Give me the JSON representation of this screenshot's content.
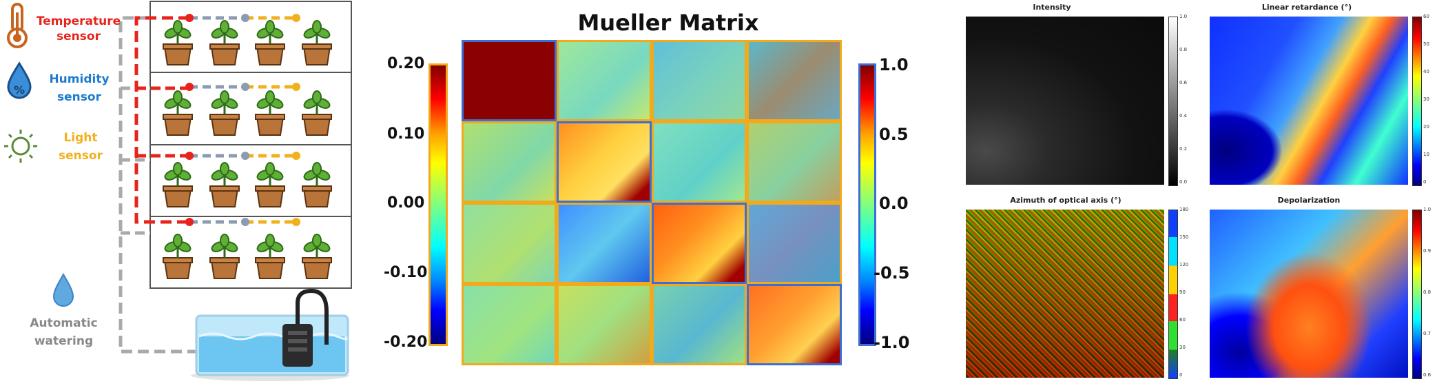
{
  "sensors": {
    "temperature": {
      "line1": "Temperature",
      "line2": "sensor",
      "color": "#e8231c"
    },
    "humidity": {
      "line1": "Humidity",
      "line2": "sensor",
      "color": "#1e7bd0"
    },
    "light": {
      "line1": "Light",
      "line2": "sensor",
      "color": "#f2b01e"
    },
    "watering": {
      "line1": "Automatic",
      "line2": "watering",
      "color": "#888888"
    }
  },
  "mueller": {
    "title": "Mueller Matrix",
    "left_ticks": [
      "0.20",
      "0.10",
      "0.00",
      "-0.10",
      "-0.20"
    ],
    "right_ticks": [
      "1.0",
      "0.5",
      "0.0",
      "-0.5",
      "-1.0"
    ],
    "orange_border": "#f2a91c",
    "blue_border": "#3b6fd6"
  },
  "panels": {
    "intensity": {
      "title": "Intensity",
      "ticks": [
        "1.0",
        "0.8",
        "0.6",
        "0.4",
        "0.2",
        "0.0"
      ]
    },
    "retardance": {
      "title": "Linear retardance (°)",
      "ticks": [
        "60",
        "50",
        "40",
        "30",
        "20",
        "10",
        "0"
      ]
    },
    "azimuth": {
      "title": "Azimuth of optical axis (°)",
      "ticks": [
        "180",
        "150",
        "120",
        "90",
        "60",
        "30",
        "0"
      ]
    },
    "depolarization": {
      "title": "Depolarization",
      "ticks": [
        "1.0",
        "0.9",
        "0.8",
        "0.7",
        "0.6"
      ]
    }
  }
}
